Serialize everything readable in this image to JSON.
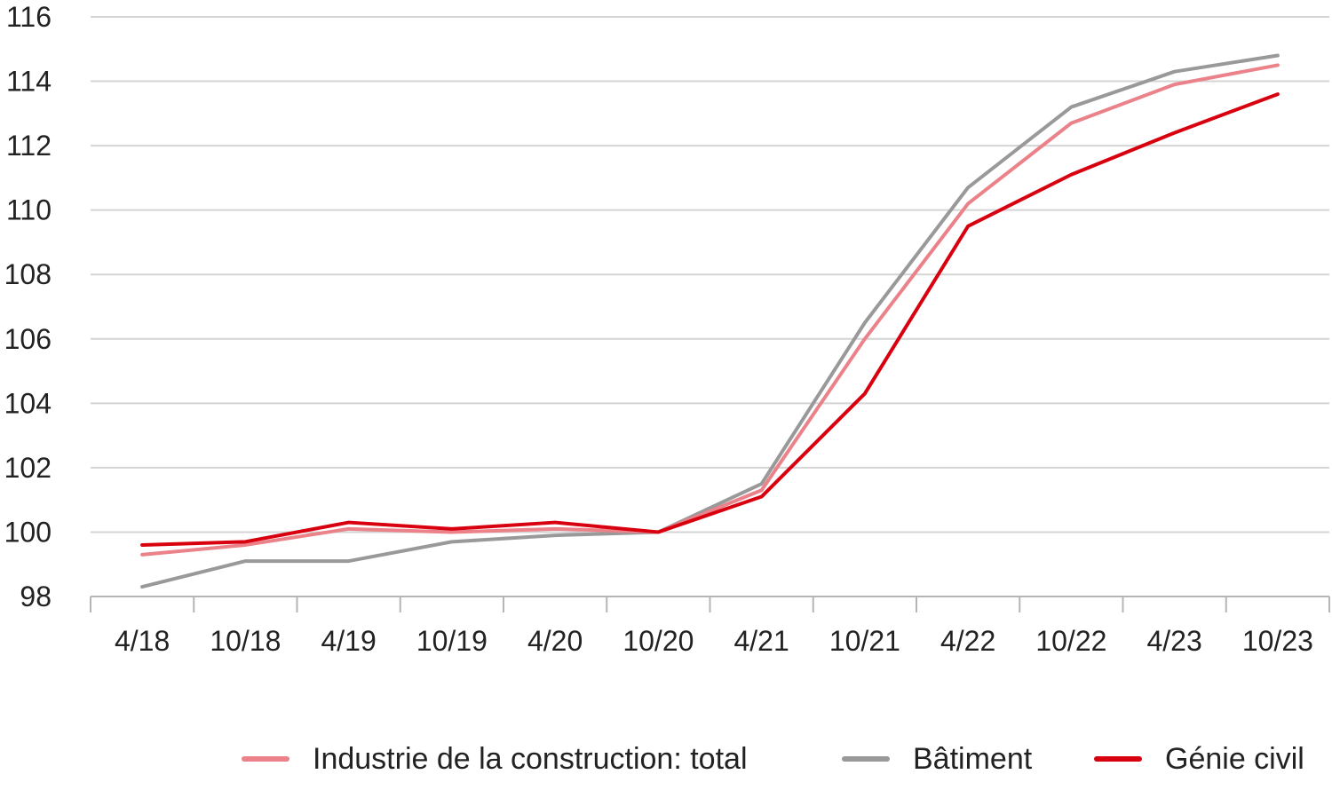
{
  "chart_data": {
    "type": "line",
    "categories": [
      "4/18",
      "10/18",
      "4/19",
      "10/19",
      "4/20",
      "10/20",
      "4/21",
      "10/21",
      "4/22",
      "10/22",
      "4/23",
      "10/23"
    ],
    "ylim": [
      98,
      116
    ],
    "yticks": [
      98,
      100,
      102,
      104,
      106,
      108,
      110,
      112,
      114,
      116
    ],
    "grid": true,
    "legend_position": "bottom-right",
    "series": [
      {
        "name": "Industrie de la construction: total",
        "color": "#eb8189",
        "values": [
          99.3,
          99.6,
          100.1,
          100.0,
          100.1,
          100.0,
          101.3,
          106.0,
          110.2,
          112.7,
          113.9,
          114.5
        ]
      },
      {
        "name": "Bâtiment",
        "color": "#999999",
        "values": [
          98.3,
          99.1,
          99.1,
          99.7,
          99.9,
          100.0,
          101.5,
          106.5,
          110.7,
          113.2,
          114.3,
          114.8
        ]
      },
      {
        "name": "Génie civil",
        "color": "#d8000f",
        "values": [
          99.6,
          99.7,
          100.3,
          100.1,
          100.3,
          100.0,
          101.1,
          104.3,
          109.5,
          111.1,
          112.4,
          113.6
        ]
      }
    ]
  }
}
